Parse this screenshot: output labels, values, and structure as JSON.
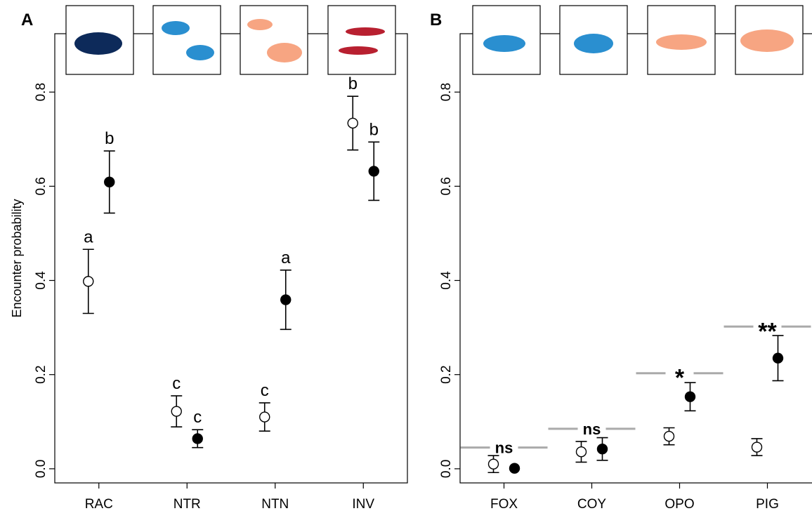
{
  "chart_data": [
    {
      "type": "point",
      "panel": "A",
      "y_label": "Encounter probability",
      "categories": [
        "RAC",
        "NTR",
        "NTN",
        "INV"
      ],
      "ylim": [
        -0.03,
        0.924
      ],
      "yticks": [
        {
          "value": 0,
          "label": "0.0"
        },
        0.2,
        0.4,
        0.6,
        0.8
      ],
      "series": [
        {
          "color": "#ffffff",
          "values": [
            0.398,
            0.122,
            0.11,
            0.734
          ],
          "errors": [
            0.068,
            0.033,
            0.03,
            0.057
          ],
          "annotations": [
            "a",
            "c",
            "c",
            "b"
          ]
        },
        {
          "color": "#000000",
          "values": [
            0.609,
            0.064,
            0.359,
            0.632
          ],
          "errors": [
            0.066,
            0.019,
            0.063,
            0.062
          ],
          "annotations": [
            "b",
            "c",
            "a",
            "b"
          ]
        }
      ]
    },
    {
      "type": "point",
      "panel": "B",
      "categories": [
        "FOX",
        "COY",
        "OPO",
        "PIG"
      ],
      "ylim": [
        -0.03,
        0.924
      ],
      "yticks": [
        {
          "value": 0,
          "label": "0.0"
        },
        0.2,
        0.4,
        0.6,
        0.8
      ],
      "series": [
        {
          "color": "#ffffff",
          "values": [
            0.01,
            0.036,
            0.069,
            0.046
          ],
          "errors": [
            0.018,
            0.022,
            0.018,
            0.018
          ]
        },
        {
          "color": "#000000",
          "values": [
            0.001,
            0.042,
            0.153,
            0.235
          ],
          "errors": [
            0,
            0.024,
            0.03,
            0.048
          ]
        }
      ],
      "significance": [
        {
          "label": "ns",
          "value": 0.045
        },
        {
          "label": "ns",
          "value": 0.085
        },
        {
          "label": "*",
          "value": 0.203
        },
        {
          "label": "**",
          "value": 0.302
        }
      ]
    }
  ]
}
